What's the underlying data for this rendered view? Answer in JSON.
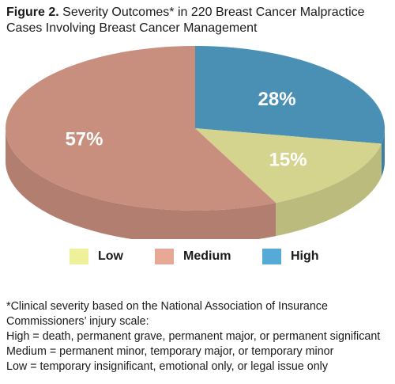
{
  "figure": {
    "label": "Figure 2.",
    "title_line1": "Severity Outcomes* in 220 Breast Cancer Malpractice",
    "title_line2": "Cases Involving Breast Cancer Management"
  },
  "chart_data": {
    "type": "pie",
    "title": "Severity Outcomes* in 220 Breast Cancer Malpractice Cases Involving Breast Cancer Management",
    "categories": [
      "Low",
      "Medium",
      "High"
    ],
    "values": [
      15,
      57,
      28
    ],
    "labels": [
      "15%",
      "57%",
      "28%"
    ],
    "colors": {
      "Low": "#d4d48e",
      "Medium": "#c98f7e",
      "High": "#4a90b5"
    },
    "legend_colors": {
      "Low": "#eef09a",
      "Medium": "#e8a896",
      "High": "#55aad8"
    },
    "legend_position": "bottom",
    "three_d": true
  },
  "footnote": {
    "lines": [
      "*Clinical severity based on the National Association of Insurance",
      "Commissioners’ injury scale:",
      "High = death, permanent grave, permanent major, or permanent significant",
      "Medium = permanent minor, temporary major, or temporary minor",
      "Low = temporary insignificant, emotional only, or legal issue only"
    ]
  }
}
